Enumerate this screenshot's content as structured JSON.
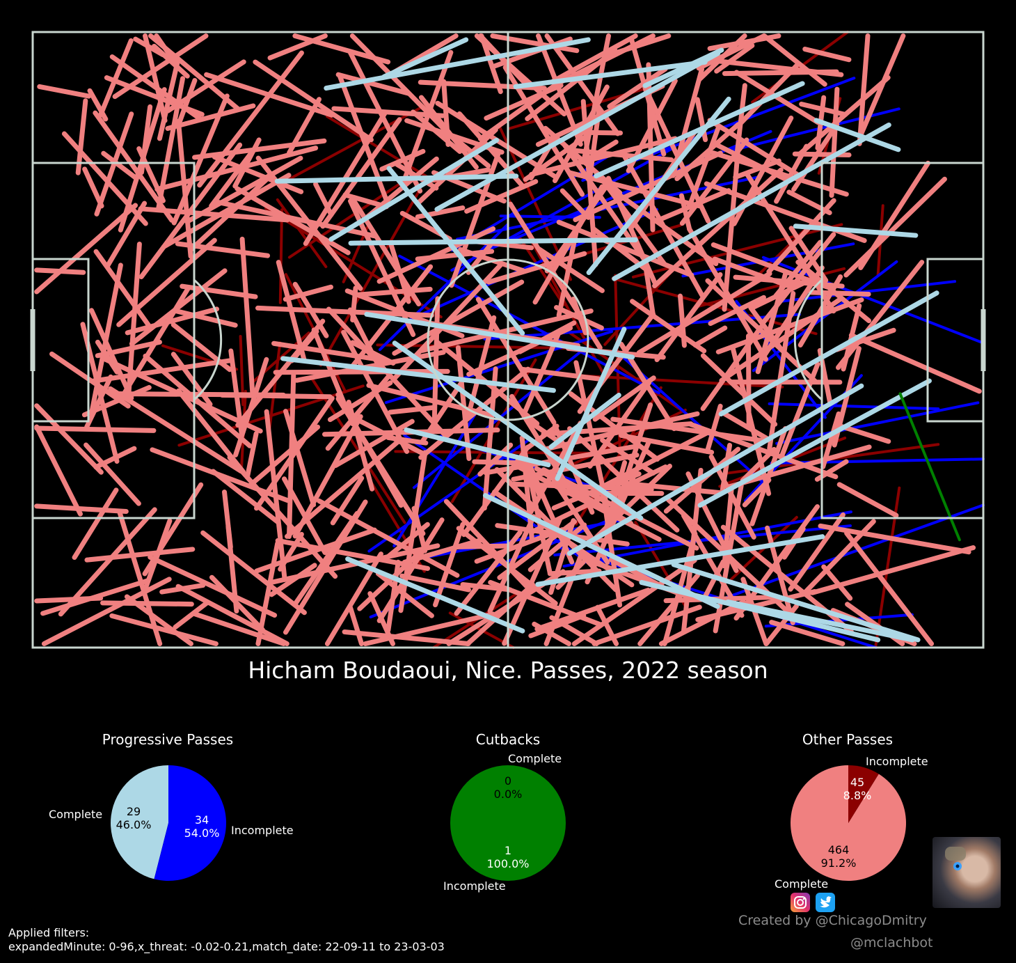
{
  "chart_data": [
    {
      "type": "pass-map",
      "title": "Hicham Boudaoui, Nice. Passes, 2022 season",
      "pitch": {
        "x_range": [
          0,
          120
        ],
        "y_range": [
          0,
          80
        ],
        "line_color": "#c9d6cf"
      },
      "series_colors": {
        "progressive_complete": "#add8e6",
        "progressive_incomplete": "#0000ff",
        "other_complete": "#f08080",
        "other_incomplete": "#8b0000",
        "cutback_incomplete": "#008000"
      },
      "pass_counts": {
        "progressive_complete": 29,
        "progressive_incomplete": 34,
        "cutback_complete": 0,
        "cutback_incomplete": 1,
        "other_complete": 464,
        "other_incomplete": 45
      }
    },
    {
      "type": "pie",
      "title": "Progressive Passes",
      "slices": [
        {
          "name": "Complete",
          "value": 29,
          "pct": "46.0%",
          "color": "#add8e6"
        },
        {
          "name": "Incomplete",
          "value": 34,
          "pct": "54.0%",
          "color": "#0000ff"
        }
      ]
    },
    {
      "type": "pie",
      "title": "Cutbacks",
      "slices": [
        {
          "name": "Complete",
          "value": 0,
          "pct": "0.0%",
          "color": "#add8e6"
        },
        {
          "name": "Incomplete",
          "value": 1,
          "pct": "100.0%",
          "color": "#008000"
        }
      ]
    },
    {
      "type": "pie",
      "title": "Other Passes",
      "slices": [
        {
          "name": "Complete",
          "value": 464,
          "pct": "91.2%",
          "color": "#f08080"
        },
        {
          "name": "Incomplete",
          "value": 45,
          "pct": "8.8%",
          "color": "#8b0000"
        }
      ]
    }
  ],
  "filters": {
    "heading": "Applied filters:",
    "text": "expandedMinute: 0-96,x_threat: -0.02-0.21,match_date: 22-09-11 to 23-03-03"
  },
  "credits": {
    "created_by": "Created by @ChicagoDmitry",
    "bot": "@mclachbot"
  },
  "icons": [
    "instagram-icon",
    "twitter-icon",
    "avatar-image"
  ]
}
